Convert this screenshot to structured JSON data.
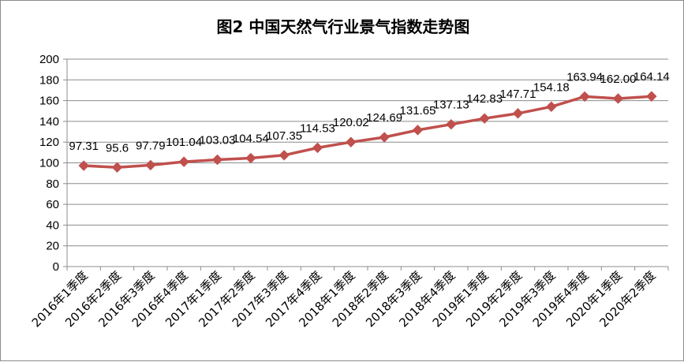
{
  "chart_data": {
    "type": "line",
    "title": "图2  中国天然气行业景气指数走势图",
    "categories": [
      "2016年1季度",
      "2016年2季度",
      "2016年3季度",
      "2016年4季度",
      "2017年1季度",
      "2017年2季度",
      "2017年3季度",
      "2017年4季度",
      "2018年1季度",
      "2018年2季度",
      "2018年3季度",
      "2018年4季度",
      "2019年1季度",
      "2019年2季度",
      "2019年3季度",
      "2019年4季度",
      "2020年1季度",
      "2020年2季度"
    ],
    "values": [
      97.31,
      95.6,
      97.79,
      101.04,
      103.03,
      104.54,
      107.35,
      114.53,
      120.02,
      124.69,
      131.65,
      137.13,
      142.83,
      147.71,
      154.18,
      163.94,
      162.0,
      164.14
    ],
    "data_labels": [
      "97.31",
      "95.6",
      "97.79",
      "101.04",
      "103.03",
      "104.54",
      "107.35",
      "114.53",
      "120.02",
      "124.69",
      "131.65",
      "137.13",
      "142.83",
      "147.71",
      "154.18",
      "163.94",
      "162.00",
      "164.14"
    ],
    "ylim": [
      0,
      200
    ],
    "yticks": [
      0,
      20,
      40,
      60,
      80,
      100,
      120,
      140,
      160,
      180,
      200
    ],
    "grid": true,
    "legend": "none",
    "line_color": "#C0504D",
    "marker": "diamond"
  }
}
